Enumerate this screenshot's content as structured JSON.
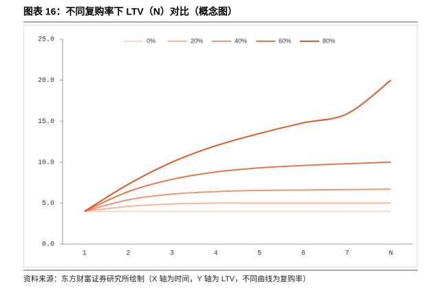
{
  "chart_data": {
    "type": "line",
    "title": "图表 16：不同复购率下 LTV（N）对比（概念图）",
    "source": "资料来源：东方财富证券研究所绘制（X 轴为时间，Y 轴为 LTV，不同曲线为复购率）",
    "categories": [
      "1",
      "2",
      "3",
      "4",
      "5",
      "6",
      "7",
      "N"
    ],
    "series": [
      {
        "name": "0%",
        "color": "#f8d6c8",
        "values": [
          4,
          4,
          4,
          4,
          4,
          4,
          4,
          4
        ]
      },
      {
        "name": "20%",
        "color": "#f4b69c",
        "values": [
          4,
          4.6,
          4.9,
          5,
          5,
          5,
          5,
          5
        ]
      },
      {
        "name": "40%",
        "color": "#ee9574",
        "values": [
          4,
          5.4,
          6.1,
          6.4,
          6.55,
          6.6,
          6.65,
          6.7
        ]
      },
      {
        "name": "60%",
        "color": "#e8744c",
        "values": [
          4,
          6.4,
          7.9,
          8.8,
          9.3,
          9.6,
          9.8,
          10
        ]
      },
      {
        "name": "80%",
        "color": "#e0582a",
        "values": [
          4,
          7.3,
          10,
          12,
          13.5,
          14.8,
          15.9,
          20
        ]
      }
    ],
    "ylim": [
      0,
      25
    ],
    "yticks": [
      {
        "value": 0,
        "label": "0.0"
      },
      {
        "value": 5,
        "label": "5.0"
      },
      {
        "value": 10,
        "label": "10.0"
      },
      {
        "value": 15,
        "label": "15.0"
      },
      {
        "value": 20,
        "label": "20.0"
      },
      {
        "value": 25,
        "label": "25.0"
      }
    ],
    "legend": "top"
  }
}
